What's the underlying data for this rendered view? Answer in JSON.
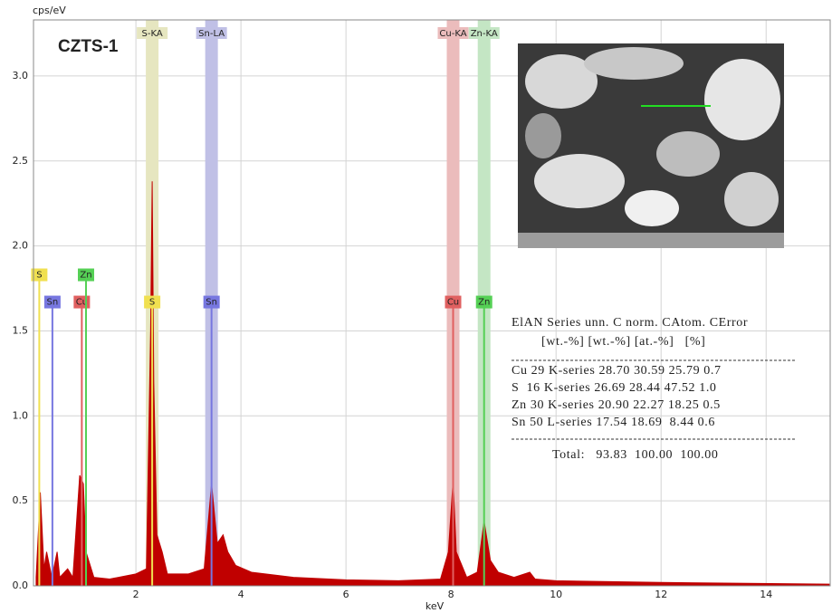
{
  "chart_data": {
    "type": "spectrum",
    "title": "CZTS-1",
    "x_label": "keV",
    "y_label": "cps/eV",
    "xlim": [
      0.05,
      15.22
    ],
    "ylim": [
      0,
      3.33
    ],
    "xticks": [
      2,
      4,
      6,
      8,
      10,
      12,
      14
    ],
    "yticks": [
      {
        "value": 0,
        "label": "0.0"
      },
      0.5,
      {
        "value": 1,
        "label": "1.0"
      },
      1.5,
      {
        "value": 2,
        "label": "2.0"
      },
      2.5,
      {
        "value": 3,
        "label": "3.0"
      }
    ],
    "grid": true,
    "series": [
      {
        "color": "#c00000",
        "x": [
          0.1,
          0.18,
          0.25,
          0.3,
          0.4,
          0.5,
          0.55,
          0.7,
          0.8,
          0.93,
          1.0,
          1.05,
          1.2,
          1.5,
          2.0,
          2.2,
          2.28,
          2.31,
          2.34,
          2.4,
          2.5,
          2.6,
          3.0,
          3.3,
          3.44,
          3.55,
          3.66,
          3.75,
          3.9,
          4.2,
          5.0,
          6.0,
          7.0,
          7.8,
          7.95,
          8.04,
          8.1,
          8.3,
          8.5,
          8.63,
          8.75,
          8.9,
          9.2,
          9.5,
          9.6,
          10.0,
          12.0,
          15.2
        ],
        "values": [
          0.05,
          0.55,
          0.1,
          0.2,
          0.05,
          0.2,
          0.05,
          0.1,
          0.05,
          0.65,
          0.6,
          0.2,
          0.05,
          0.04,
          0.07,
          0.1,
          1.5,
          2.38,
          1.2,
          0.3,
          0.2,
          0.07,
          0.07,
          0.1,
          0.6,
          0.25,
          0.3,
          0.2,
          0.12,
          0.08,
          0.05,
          0.035,
          0.03,
          0.04,
          0.2,
          0.62,
          0.2,
          0.05,
          0.08,
          0.38,
          0.15,
          0.08,
          0.05,
          0.08,
          0.04,
          0.03,
          0.02,
          0.01
        ]
      }
    ],
    "bands": [
      {
        "label": "S-KA",
        "x": 2.31,
        "color": "#e6e6c0"
      },
      {
        "label": "Sn-LA",
        "x": 3.44,
        "color": "#c0c0e6"
      },
      {
        "label": "Cu-KA",
        "x": 8.04,
        "color": "#ebbcbc"
      },
      {
        "label": "Zn-KA",
        "x": 8.63,
        "color": "#c4e6c4"
      }
    ],
    "markers": [
      {
        "label": "S",
        "x": 0.16,
        "height": 1.83,
        "color": "#f0e050"
      },
      {
        "label": "Sn",
        "x": 0.41,
        "height": 1.67,
        "color": "#7777e0"
      },
      {
        "label": "Cu",
        "x": 0.97,
        "height": 1.67,
        "color": "#e06060"
      },
      {
        "label": "Zn",
        "x": 1.05,
        "height": 1.83,
        "color": "#55d055"
      },
      {
        "label": "S",
        "x": 2.31,
        "height": 1.67,
        "color": "#f0e050"
      },
      {
        "label": "Sn",
        "x": 3.44,
        "height": 1.67,
        "color": "#7777e0"
      },
      {
        "label": "Cu",
        "x": 8.04,
        "height": 1.67,
        "color": "#e06060"
      },
      {
        "label": "Zn",
        "x": 8.63,
        "height": 1.67,
        "color": "#55d055"
      }
    ],
    "results_table": {
      "header": [
        "ElAN Series unn. C norm. CAtom. CError",
        "[wt.-%] [wt.-%] [at.-%]   [%]"
      ],
      "rows": [
        "Cu 29 K-series 28.70 30.59 25.79 0.7",
        "S  16 K-series 26.69 28.44 47.52 1.0",
        "Zn 30 K-series 20.90 22.27 18.25 0.5",
        "Sn 50 L-series 17.54 18.69  8.44 0.6"
      ],
      "total": "Total:   93.83  100.00  100.00"
    }
  }
}
